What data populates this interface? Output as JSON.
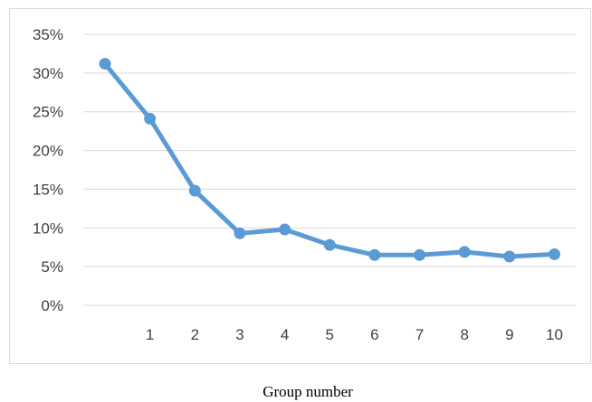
{
  "chart_data": {
    "type": "line",
    "title": "",
    "xlabel": "Group number",
    "ylabel": "",
    "categories": [
      "",
      "1",
      "2",
      "3",
      "4",
      "5",
      "6",
      "7",
      "8",
      "9",
      "10"
    ],
    "x_tick_labels": [
      "1",
      "2",
      "3",
      "4",
      "5",
      "6",
      "7",
      "8",
      "9",
      "10"
    ],
    "series": [
      {
        "values": [
          31.2,
          24.1,
          14.8,
          9.3,
          9.8,
          7.8,
          6.5,
          6.5,
          6.9,
          6.3,
          6.6
        ]
      }
    ],
    "ylim": [
      0,
      35
    ],
    "y_ticks": [
      0,
      5,
      10,
      15,
      20,
      25,
      30,
      35
    ],
    "y_tick_labels": [
      "0%",
      "5%",
      "10%",
      "15%",
      "20%",
      "25%",
      "30%",
      "35%"
    ],
    "grid": true,
    "legend": "none",
    "colors": {
      "series": "#5b9bd5",
      "grid": "#d9d9d9",
      "tick_text": "#404040",
      "axis_title_text": "#000000"
    }
  }
}
